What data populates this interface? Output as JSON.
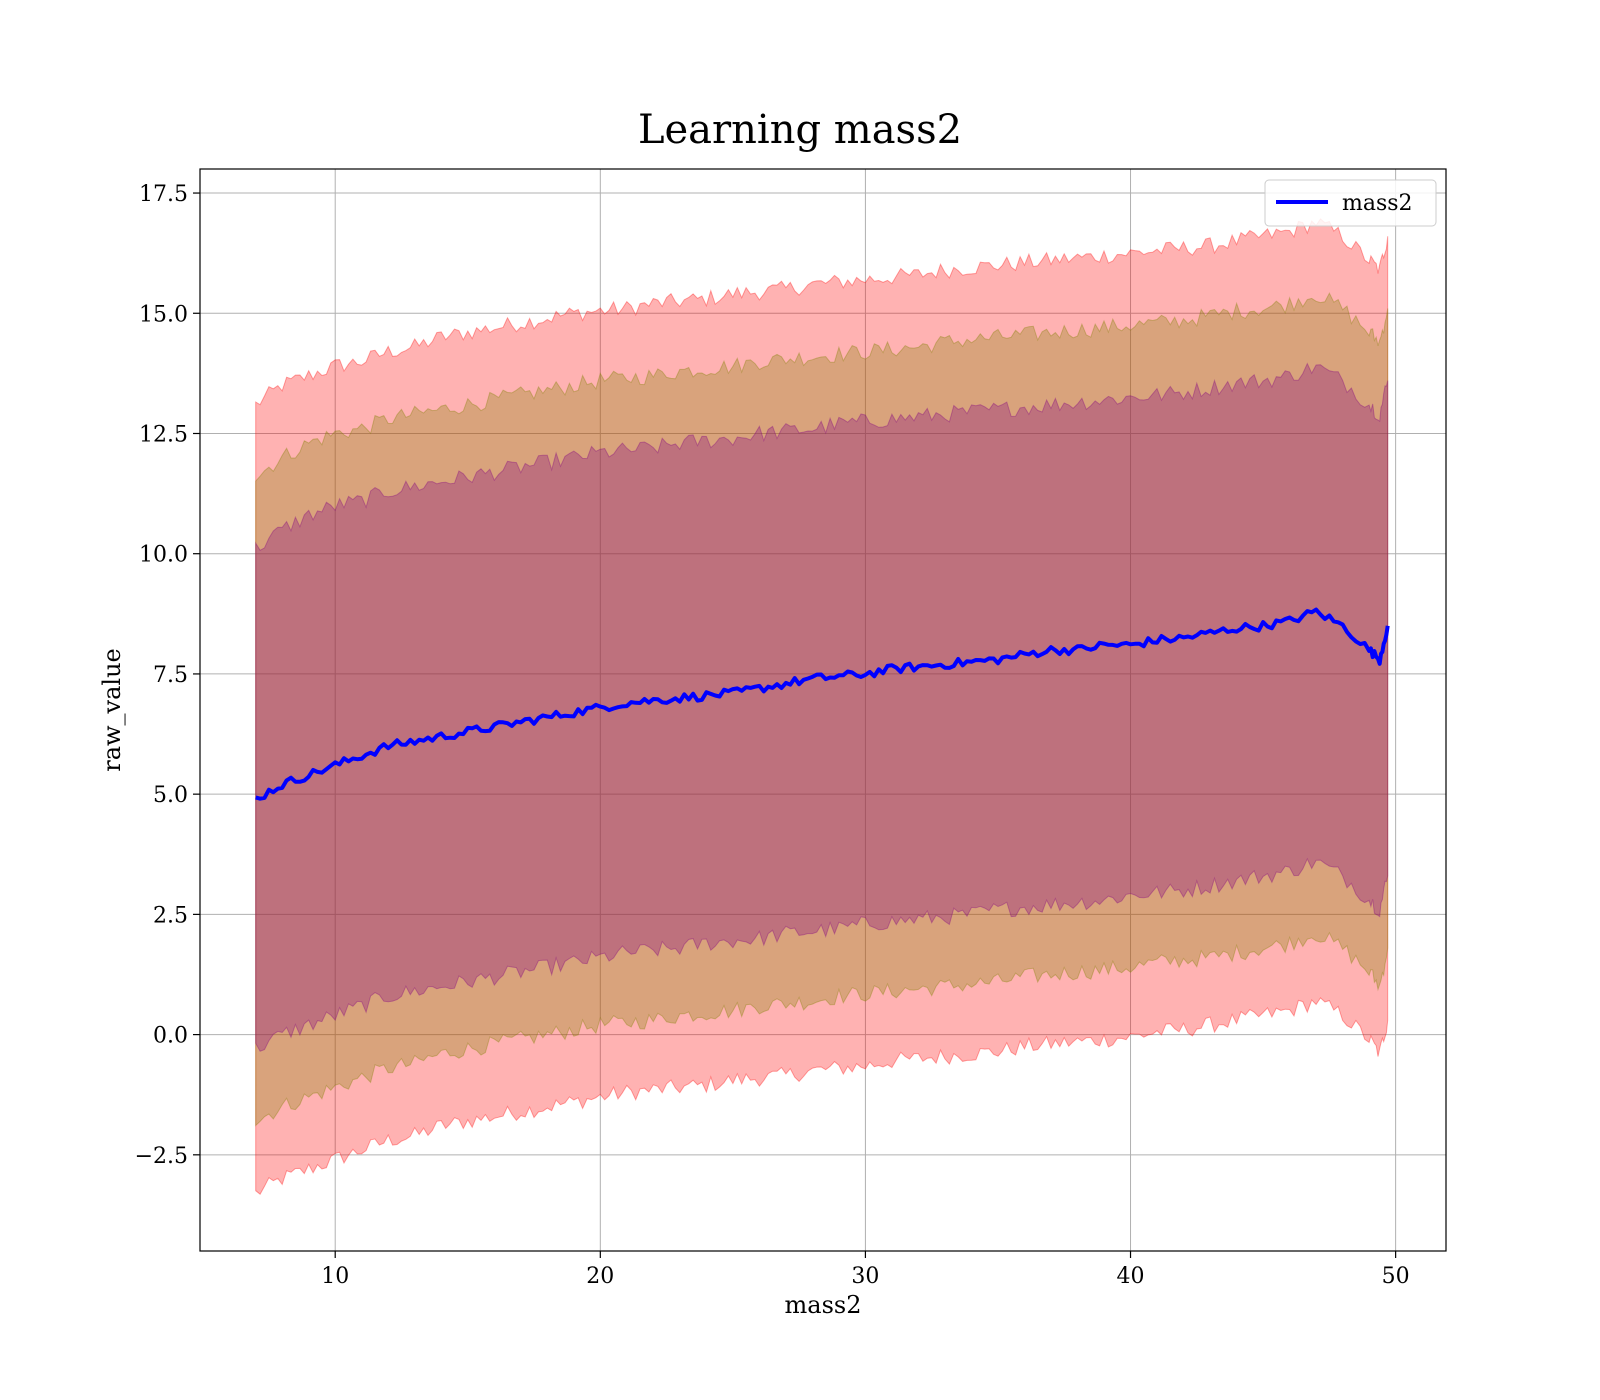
{
  "chart_data": {
    "type": "area",
    "title": "Learning mass2",
    "xlabel": "mass2",
    "ylabel": "raw_value",
    "xlim": [
      4.9,
      51.9
    ],
    "ylim": [
      -4.5,
      18.0
    ],
    "xticks": [
      10,
      20,
      30,
      40,
      50
    ],
    "xtick_labels": [
      "10",
      "20",
      "30",
      "40",
      "50"
    ],
    "yticks": [
      -2.5,
      0.0,
      2.5,
      5.0,
      7.5,
      10.0,
      12.5,
      15.0,
      17.5
    ],
    "ytick_labels": [
      "−2.5",
      "0.0",
      "2.5",
      "5.0",
      "7.5",
      "10.0",
      "12.5",
      "15.0",
      "17.5"
    ],
    "grid": true,
    "legend": {
      "placement": "top-right",
      "entries": [
        {
          "name": "mass2",
          "color": "#0000ff"
        }
      ]
    },
    "x": [
      7.0,
      8.0,
      9.0,
      10.0,
      11.0,
      12.0,
      13.0,
      14.0,
      15.0,
      16.0,
      17.0,
      18.0,
      19.0,
      20.0,
      21.0,
      22.0,
      23.0,
      24.0,
      25.0,
      26.0,
      27.0,
      28.0,
      29.0,
      30.0,
      31.0,
      32.0,
      33.0,
      34.0,
      35.0,
      36.0,
      37.0,
      38.0,
      39.0,
      40.0,
      41.0,
      42.0,
      43.0,
      44.0,
      45.0,
      46.0,
      47.0,
      48.0,
      49.0,
      49.4,
      49.7
    ],
    "series": [
      {
        "name": "mass2",
        "color": "#0000ff",
        "values": [
          4.9,
          5.2,
          5.4,
          5.6,
          5.8,
          6.0,
          6.1,
          6.2,
          6.3,
          6.4,
          6.5,
          6.6,
          6.7,
          6.8,
          6.9,
          6.95,
          7.0,
          7.05,
          7.1,
          7.2,
          7.3,
          7.4,
          7.45,
          7.5,
          7.6,
          7.65,
          7.7,
          7.75,
          7.8,
          7.9,
          8.0,
          8.0,
          8.1,
          8.1,
          8.2,
          8.25,
          8.35,
          8.45,
          8.5,
          8.6,
          8.8,
          8.5,
          8.0,
          7.8,
          8.5
        ]
      }
    ],
    "bands": [
      {
        "color": "#ff0000",
        "opacity": 0.3,
        "upper": [
          13.1,
          13.5,
          13.7,
          13.9,
          14.0,
          14.2,
          14.3,
          14.5,
          14.6,
          14.7,
          14.8,
          14.9,
          15.0,
          15.05,
          15.1,
          15.2,
          15.25,
          15.3,
          15.4,
          15.45,
          15.5,
          15.6,
          15.65,
          15.7,
          15.75,
          15.8,
          15.9,
          15.95,
          16.0,
          16.05,
          16.1,
          16.15,
          16.2,
          16.25,
          16.3,
          16.35,
          16.4,
          16.5,
          16.6,
          16.7,
          16.9,
          16.6,
          16.1,
          15.9,
          16.6
        ],
        "lower": [
          -3.3,
          -3.0,
          -2.8,
          -2.6,
          -2.4,
          -2.2,
          -2.1,
          -1.9,
          -1.8,
          -1.7,
          -1.6,
          -1.5,
          -1.4,
          -1.3,
          -1.2,
          -1.15,
          -1.1,
          -1.05,
          -0.95,
          -0.9,
          -0.85,
          -0.75,
          -0.7,
          -0.65,
          -0.55,
          -0.5,
          -0.45,
          -0.4,
          -0.35,
          -0.25,
          -0.2,
          -0.15,
          -0.1,
          -0.05,
          0.05,
          0.1,
          0.2,
          0.3,
          0.4,
          0.5,
          0.7,
          0.4,
          -0.1,
          -0.4,
          0.3
        ]
      },
      {
        "color": "#808000",
        "opacity": 0.3,
        "upper": [
          11.6,
          12.0,
          12.3,
          12.5,
          12.6,
          12.8,
          12.9,
          13.0,
          13.1,
          13.2,
          13.3,
          13.4,
          13.5,
          13.6,
          13.65,
          13.7,
          13.8,
          13.85,
          13.9,
          14.0,
          14.05,
          14.1,
          14.15,
          14.2,
          14.25,
          14.3,
          14.4,
          14.45,
          14.5,
          14.55,
          14.6,
          14.65,
          14.7,
          14.75,
          14.8,
          14.85,
          14.95,
          15.05,
          15.1,
          15.2,
          15.4,
          15.1,
          14.6,
          14.4,
          15.1
        ],
        "lower": [
          -1.8,
          -1.5,
          -1.3,
          -1.1,
          -0.9,
          -0.7,
          -0.6,
          -0.4,
          -0.3,
          -0.2,
          -0.1,
          0.0,
          0.1,
          0.2,
          0.25,
          0.3,
          0.4,
          0.45,
          0.5,
          0.6,
          0.65,
          0.7,
          0.8,
          0.85,
          0.9,
          0.95,
          1.0,
          1.05,
          1.1,
          1.2,
          1.25,
          1.3,
          1.35,
          1.4,
          1.5,
          1.55,
          1.6,
          1.7,
          1.8,
          1.9,
          2.1,
          1.8,
          1.3,
          1.0,
          1.8
        ]
      },
      {
        "color": "#800080",
        "opacity": 0.3,
        "upper": [
          10.1,
          10.5,
          10.8,
          11.0,
          11.1,
          11.3,
          11.4,
          11.5,
          11.6,
          11.7,
          11.8,
          11.9,
          12.0,
          12.1,
          12.15,
          12.2,
          12.3,
          12.35,
          12.4,
          12.5,
          12.55,
          12.6,
          12.7,
          12.75,
          12.8,
          12.85,
          12.9,
          12.95,
          13.0,
          13.05,
          13.1,
          13.15,
          13.2,
          13.25,
          13.3,
          13.35,
          13.45,
          13.55,
          13.6,
          13.7,
          13.9,
          13.6,
          13.1,
          12.9,
          13.6
        ],
        "lower": [
          -0.3,
          0.0,
          0.2,
          0.4,
          0.6,
          0.8,
          0.9,
          1.0,
          1.1,
          1.2,
          1.3,
          1.4,
          1.5,
          1.6,
          1.7,
          1.75,
          1.8,
          1.9,
          1.95,
          2.0,
          2.1,
          2.15,
          2.2,
          2.3,
          2.35,
          2.4,
          2.45,
          2.5,
          2.6,
          2.65,
          2.7,
          2.75,
          2.8,
          2.9,
          2.95,
          3.0,
          3.1,
          3.2,
          3.3,
          3.4,
          3.6,
          3.3,
          2.8,
          2.6,
          3.3
        ]
      }
    ]
  }
}
